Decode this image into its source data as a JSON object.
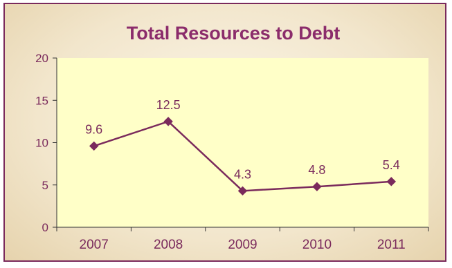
{
  "chart_data": {
    "type": "line",
    "title": "Total Resources to Debt",
    "xlabel": "",
    "ylabel": "",
    "categories": [
      "2007",
      "2008",
      "2009",
      "2010",
      "2011"
    ],
    "series": [
      {
        "values": [
          9.6,
          12.5,
          4.3,
          4.8,
          5.4
        ],
        "data_labels": [
          "9.6",
          "12.5",
          "4.3",
          "4.8",
          "5.4"
        ]
      }
    ],
    "ylim": [
      0,
      20
    ],
    "yticks": [
      0,
      5,
      10,
      15,
      20
    ],
    "ytick_labels": [
      "0",
      "5",
      "10",
      "15",
      "20"
    ],
    "grid": false,
    "legend": "none",
    "marker": "diamond",
    "colors": {
      "title": "#8b2c6b",
      "line": "#7a2a5c",
      "marker": "#7a2a5c",
      "data_label": "#7a2a5c",
      "plot_bg": "#ffffc8",
      "axis": "#333333",
      "tick_label": "#7a2a5c",
      "frame_border": "#7a2a5c"
    }
  }
}
